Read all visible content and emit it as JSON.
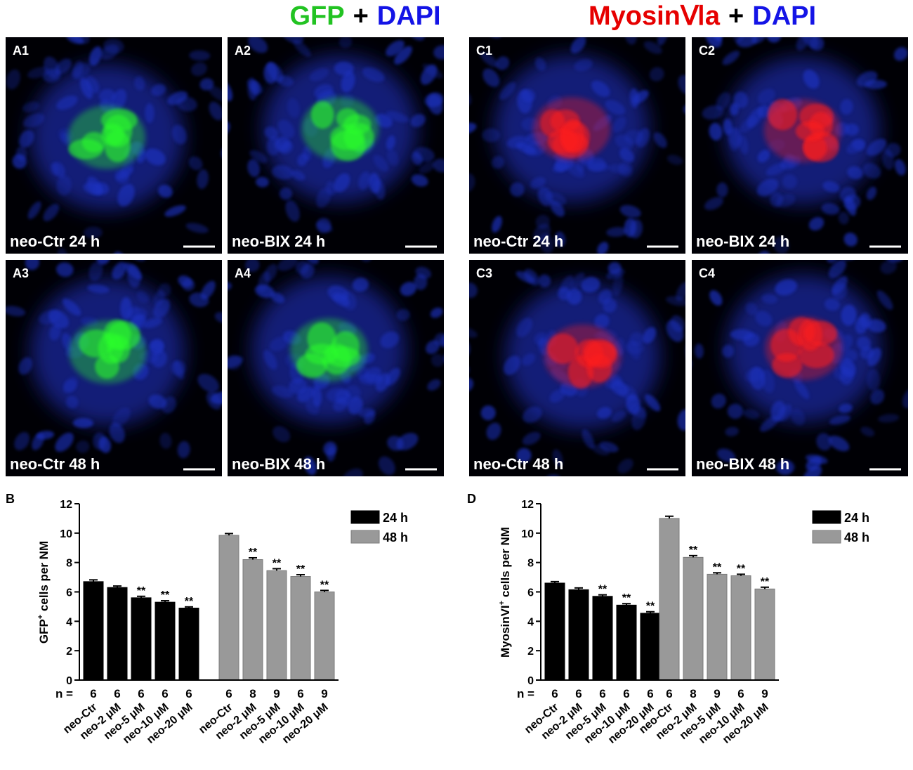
{
  "figure": {
    "titles": [
      [
        {
          "text": "GFP",
          "color": "#22c322"
        },
        {
          "text": "+",
          "color": "#000000"
        },
        {
          "text": "DAPI",
          "color": "#1414e6"
        }
      ],
      [
        {
          "text": "MyosinⅥa",
          "color": "#e60000"
        },
        {
          "text": "+",
          "color": "#000000"
        },
        {
          "text": "DAPI",
          "color": "#1414e6"
        }
      ]
    ],
    "panels": [
      {
        "label": "A1",
        "caption": "neo-Ctr 24 h",
        "color": "#2cff2c"
      },
      {
        "label": "A2",
        "caption": "neo-BIX 24 h",
        "color": "#2cff2c"
      },
      {
        "label": "A3",
        "caption": "neo-Ctr 48 h",
        "color": "#2cff2c"
      },
      {
        "label": "A4",
        "caption": "neo-BIX 48 h",
        "color": "#2cff2c"
      },
      {
        "label": "C1",
        "caption": "neo-Ctr 24 h",
        "color": "#ff1a1a"
      },
      {
        "label": "C2",
        "caption": "neo-BIX 24 h",
        "color": "#ff1a1a"
      },
      {
        "label": "C3",
        "caption": "neo-Ctr 48 h",
        "color": "#ff1a1a"
      },
      {
        "label": "C4",
        "caption": "neo-BIX 48 h",
        "color": "#ff1a1a"
      }
    ]
  },
  "chart_data": [
    {
      "type": "bar",
      "panel_label": "B",
      "y_label": [
        "GFP",
        "+",
        " cells per NM"
      ],
      "n_label": "n =",
      "categories": [
        "neo-Ctr",
        "neo-2 μM",
        "neo-5 μM",
        "neo-10 μM",
        "neo-20 μM"
      ],
      "series": [
        {
          "name": "24 h",
          "color": "#000000",
          "values": [
            6.7,
            6.3,
            5.6,
            5.3,
            4.9
          ],
          "errors": [
            0.12,
            0.1,
            0.1,
            0.1,
            0.08
          ],
          "n": [
            6,
            6,
            6,
            6,
            6
          ],
          "significance": [
            null,
            null,
            "**",
            "**",
            "**"
          ]
        },
        {
          "name": "48 h",
          "color": "#999999",
          "values": [
            9.85,
            8.2,
            7.45,
            7.05,
            6.0
          ],
          "errors": [
            0.12,
            0.12,
            0.13,
            0.12,
            0.1
          ],
          "n": [
            6,
            8,
            9,
            6,
            9
          ],
          "significance": [
            null,
            "**",
            "**",
            "**",
            "**"
          ]
        }
      ],
      "ylim": [
        0,
        12
      ],
      "yticks": [
        0,
        2,
        4,
        6,
        8,
        10,
        12
      ]
    },
    {
      "type": "bar",
      "panel_label": "D",
      "y_label": [
        "MyosinVI",
        "+",
        " cells per NM"
      ],
      "n_label": "n =",
      "categories": [
        "neo-Ctr",
        "neo-2 μM",
        "neo-5 μM",
        "neo-10 μM",
        "neo-20 μM"
      ],
      "series": [
        {
          "name": "24 h",
          "color": "#000000",
          "values": [
            6.6,
            6.15,
            5.7,
            5.1,
            4.55
          ],
          "errors": [
            0.1,
            0.12,
            0.1,
            0.1,
            0.1
          ],
          "n": [
            6,
            6,
            6,
            6,
            6
          ],
          "significance": [
            null,
            null,
            "**",
            "**",
            "**"
          ]
        },
        {
          "name": "48 h",
          "color": "#999999",
          "values": [
            11.0,
            8.35,
            7.2,
            7.1,
            6.2
          ],
          "errors": [
            0.15,
            0.12,
            0.1,
            0.1,
            0.12
          ],
          "n": [
            6,
            8,
            9,
            6,
            9
          ],
          "significance": [
            null,
            "**",
            "**",
            "**",
            "**"
          ]
        }
      ],
      "ylim": [
        0,
        12
      ],
      "yticks": [
        0,
        2,
        4,
        6,
        8,
        10,
        12
      ]
    }
  ]
}
